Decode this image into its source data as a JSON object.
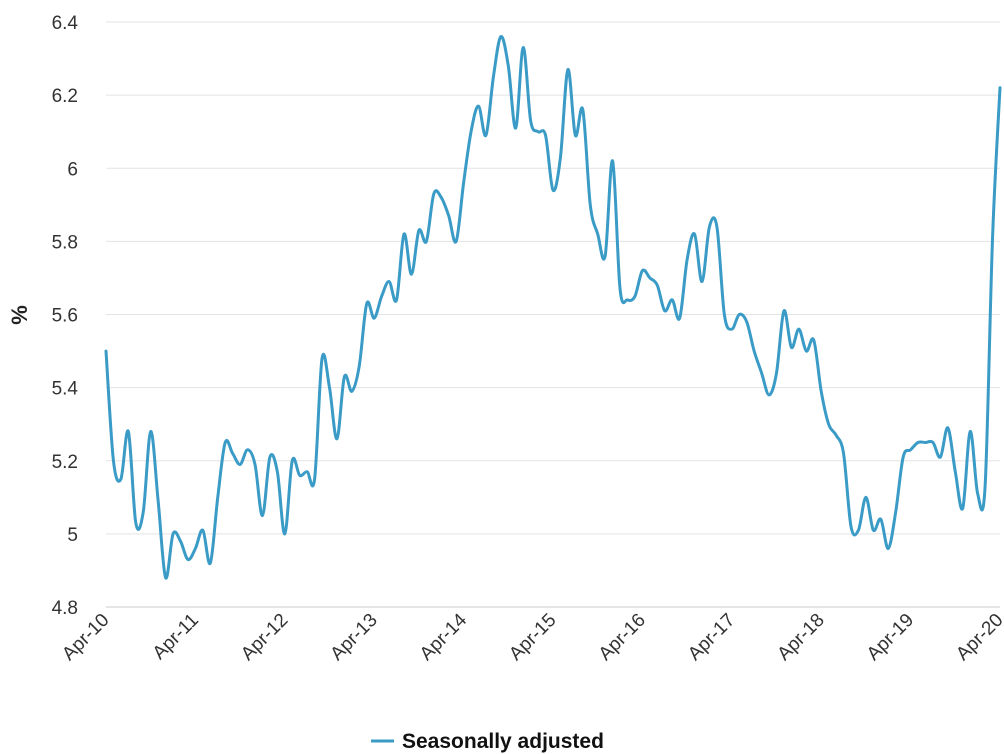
{
  "chart_data": {
    "type": "line",
    "ylabel": "%",
    "ylim": [
      4.8,
      6.4
    ],
    "yticks": [
      4.8,
      5,
      5.2,
      5.4,
      5.6,
      5.8,
      6,
      6.2,
      6.4
    ],
    "ytick_labels": [
      "4.8",
      "5",
      "5.2",
      "5.4",
      "5.6",
      "5.8",
      "6",
      "6.2",
      "6.4"
    ],
    "xticks": [
      "Apr-10",
      "Apr-11",
      "Apr-12",
      "Apr-13",
      "Apr-14",
      "Apr-15",
      "Apr-16",
      "Apr-17",
      "Apr-18",
      "Apr-19",
      "Apr-20"
    ],
    "grid": "horizontal",
    "legend_position": "bottom",
    "colors": {
      "series": "#3a9bc7",
      "grid": "#e3e3e3",
      "axis": "#cccccc"
    },
    "series": [
      {
        "name": "Seasonally adjusted",
        "x": [
          "Apr-10",
          "May-10",
          "Jun-10",
          "Jul-10",
          "Aug-10",
          "Sep-10",
          "Oct-10",
          "Nov-10",
          "Dec-10",
          "Jan-11",
          "Feb-11",
          "Mar-11",
          "Apr-11",
          "May-11",
          "Jun-11",
          "Jul-11",
          "Aug-11",
          "Sep-11",
          "Oct-11",
          "Nov-11",
          "Dec-11",
          "Jan-12",
          "Feb-12",
          "Mar-12",
          "Apr-12",
          "May-12",
          "Jun-12",
          "Jul-12",
          "Aug-12",
          "Sep-12",
          "Oct-12",
          "Nov-12",
          "Dec-12",
          "Jan-13",
          "Feb-13",
          "Mar-13",
          "Apr-13",
          "May-13",
          "Jun-13",
          "Jul-13",
          "Aug-13",
          "Sep-13",
          "Oct-13",
          "Nov-13",
          "Dec-13",
          "Jan-14",
          "Feb-14",
          "Mar-14",
          "Apr-14",
          "May-14",
          "Jun-14",
          "Jul-14",
          "Aug-14",
          "Sep-14",
          "Oct-14",
          "Nov-14",
          "Dec-14",
          "Jan-15",
          "Feb-15",
          "Mar-15",
          "Apr-15",
          "May-15",
          "Jun-15",
          "Jul-15",
          "Aug-15",
          "Sep-15",
          "Oct-15",
          "Nov-15",
          "Dec-15",
          "Jan-16",
          "Feb-16",
          "Mar-16",
          "Apr-16",
          "May-16",
          "Jun-16",
          "Jul-16",
          "Aug-16",
          "Sep-16",
          "Oct-16",
          "Nov-16",
          "Dec-16",
          "Jan-17",
          "Feb-17",
          "Mar-17",
          "Apr-17",
          "May-17",
          "Jun-17",
          "Jul-17",
          "Aug-17",
          "Sep-17",
          "Oct-17",
          "Nov-17",
          "Dec-17",
          "Jan-18",
          "Feb-18",
          "Mar-18",
          "Apr-18",
          "May-18",
          "Jun-18",
          "Jul-18",
          "Aug-18",
          "Sep-18",
          "Oct-18",
          "Nov-18",
          "Dec-18",
          "Jan-19",
          "Feb-19",
          "Mar-19",
          "Apr-19",
          "May-19",
          "Jun-19",
          "Jul-19",
          "Aug-19",
          "Sep-19",
          "Oct-19",
          "Nov-19",
          "Dec-19",
          "Jan-20",
          "Feb-20",
          "Mar-20",
          "Apr-20"
        ],
        "values": [
          5.5,
          5.2,
          5.15,
          5.28,
          5.03,
          5.06,
          5.28,
          5.09,
          4.88,
          5.0,
          4.98,
          4.93,
          4.96,
          5.01,
          4.92,
          5.1,
          5.25,
          5.22,
          5.19,
          5.23,
          5.19,
          5.05,
          5.21,
          5.17,
          5.0,
          5.2,
          5.16,
          5.17,
          5.15,
          5.48,
          5.4,
          5.26,
          5.43,
          5.39,
          5.46,
          5.63,
          5.59,
          5.65,
          5.69,
          5.64,
          5.82,
          5.71,
          5.83,
          5.8,
          5.93,
          5.92,
          5.87,
          5.8,
          5.96,
          6.1,
          6.17,
          6.09,
          6.25,
          6.36,
          6.28,
          6.11,
          6.33,
          6.13,
          6.1,
          6.09,
          5.94,
          6.03,
          6.27,
          6.09,
          6.16,
          5.9,
          5.82,
          5.76,
          6.02,
          5.67,
          5.64,
          5.65,
          5.72,
          5.7,
          5.68,
          5.61,
          5.64,
          5.59,
          5.75,
          5.82,
          5.69,
          5.84,
          5.84,
          5.6,
          5.56,
          5.6,
          5.58,
          5.5,
          5.44,
          5.38,
          5.44,
          5.61,
          5.51,
          5.56,
          5.5,
          5.53,
          5.39,
          5.3,
          5.27,
          5.22,
          5.02,
          5.01,
          5.1,
          5.01,
          5.04,
          4.96,
          5.06,
          5.21,
          5.23,
          5.25,
          5.25,
          5.25,
          5.21,
          5.29,
          5.17,
          5.07,
          5.28,
          5.11,
          5.13,
          5.81,
          6.22
        ]
      }
    ]
  }
}
